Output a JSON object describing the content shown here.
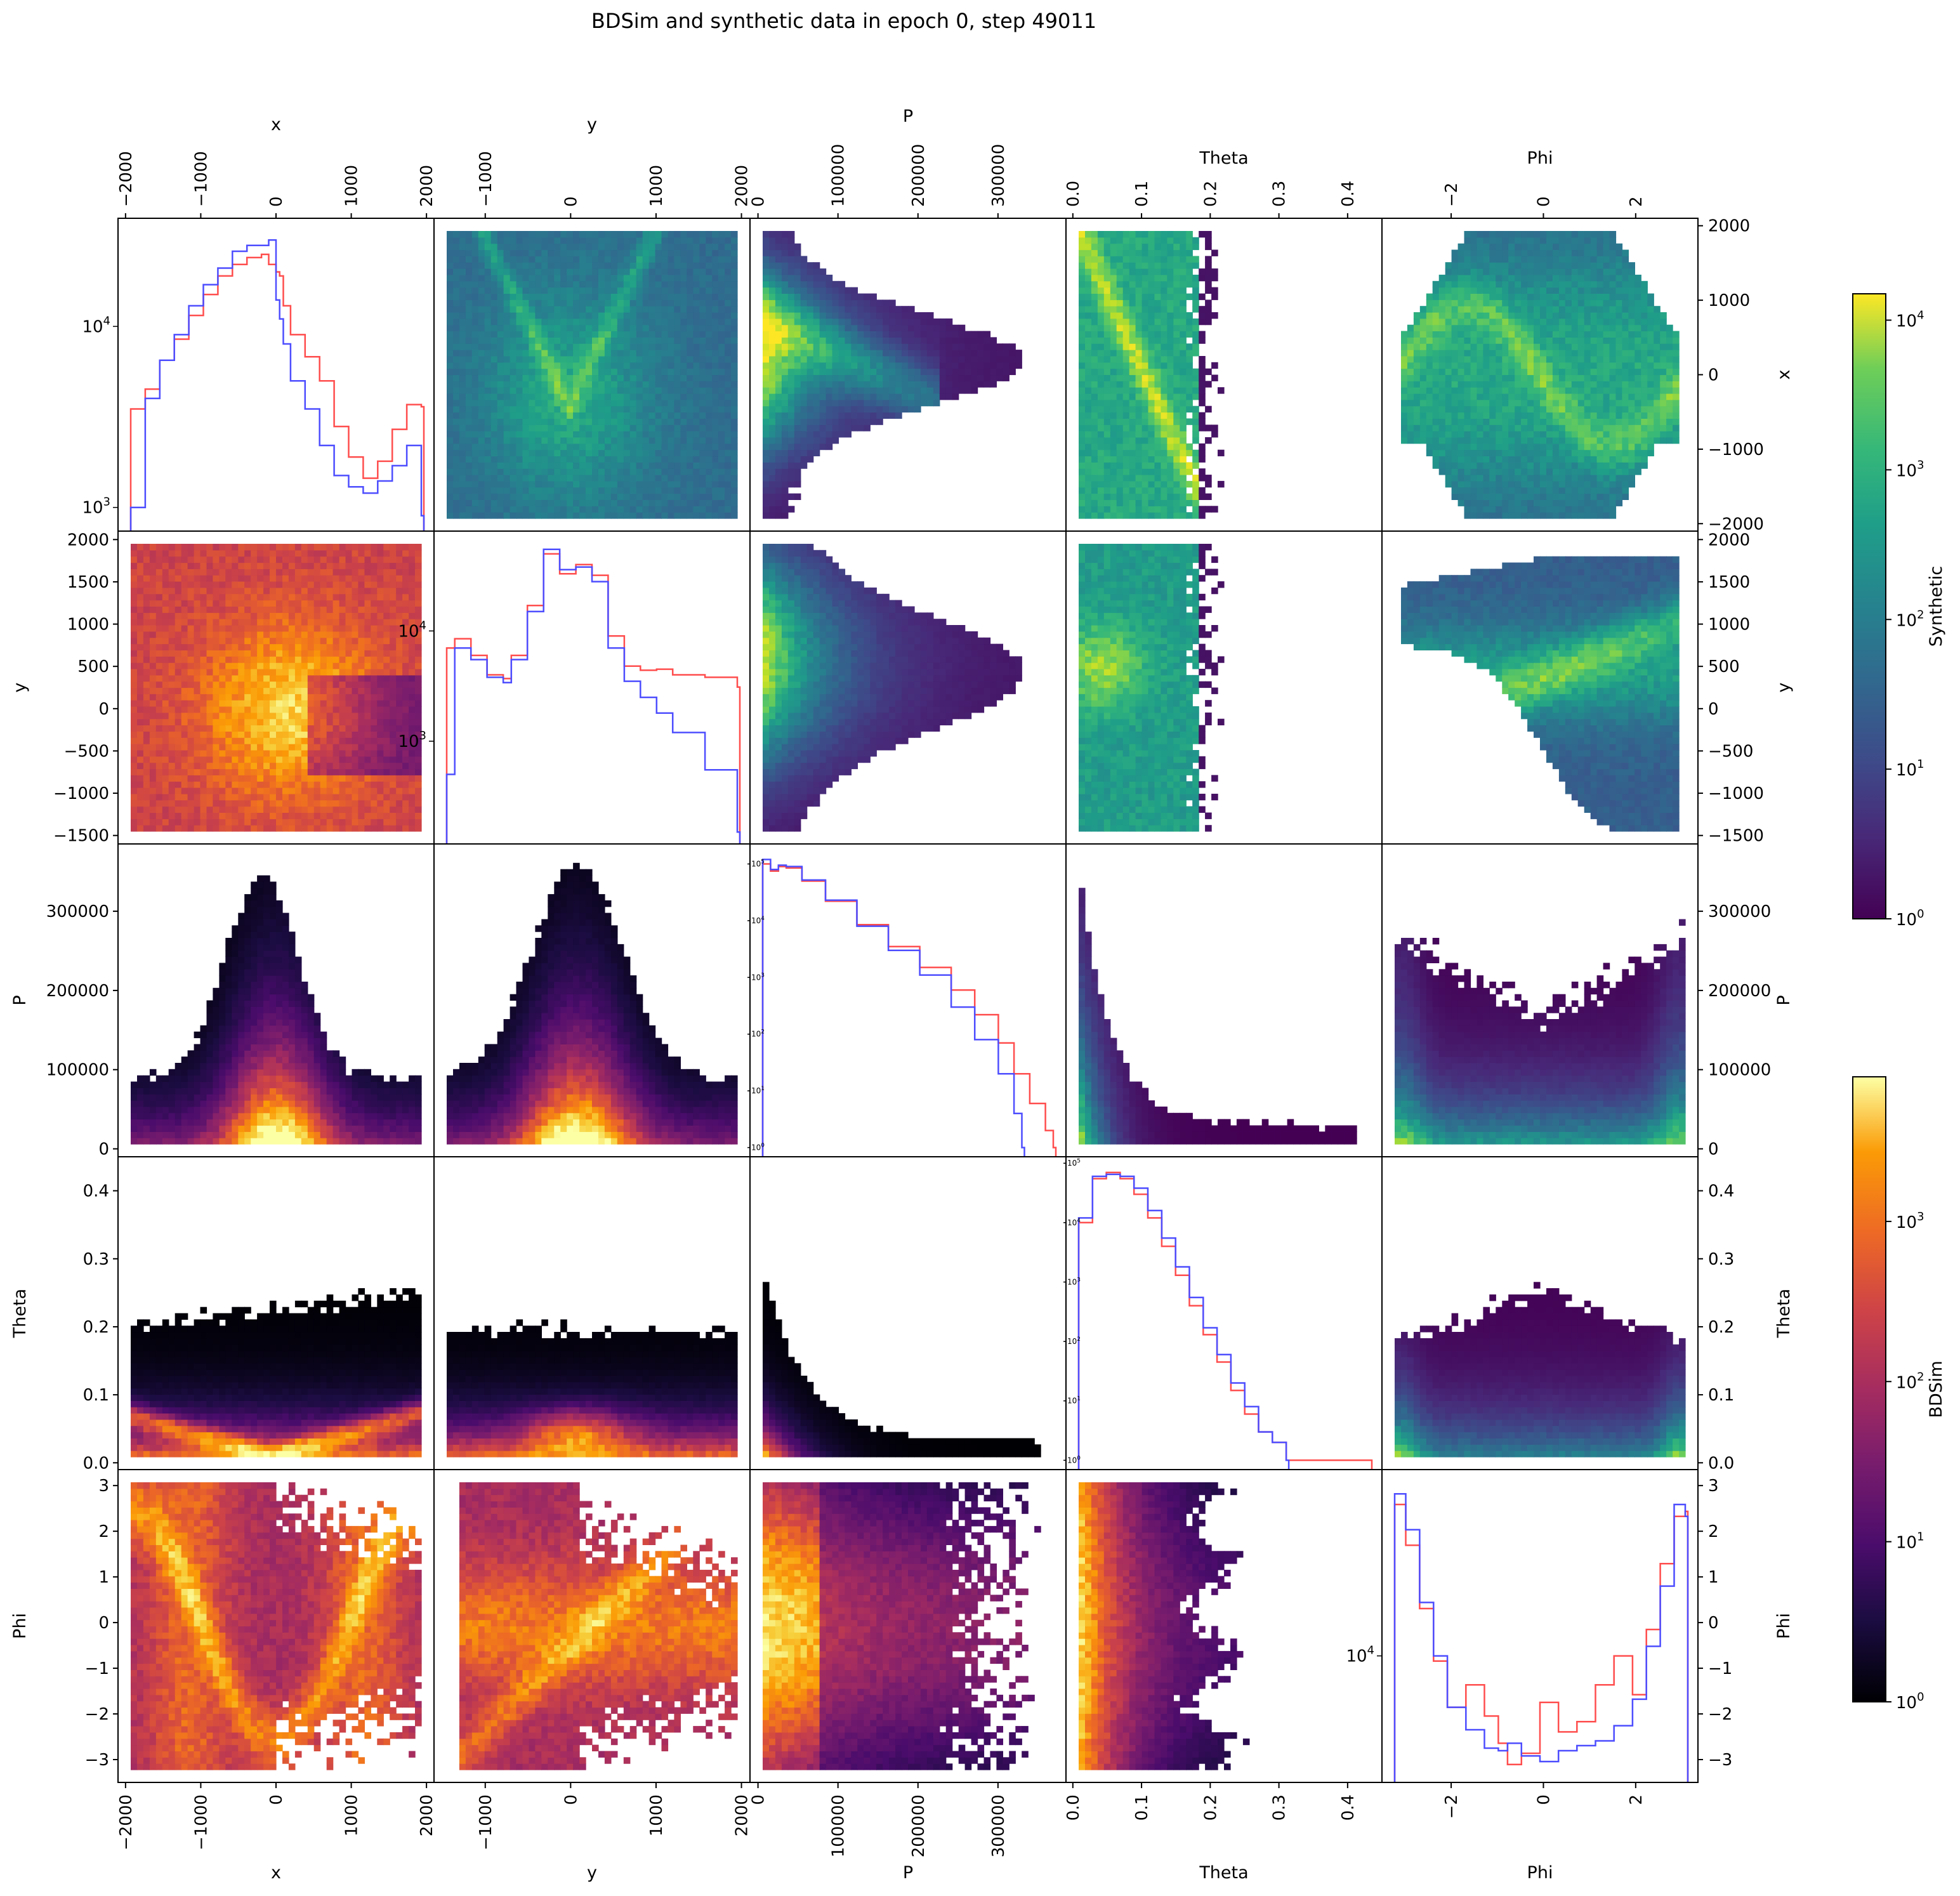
{
  "figure": {
    "title": "BDSim and synthetic data in epoch 0, step 49011"
  },
  "colors": {
    "bdsim_line": "#ff4d4d",
    "synthetic_line": "#4d4dff",
    "synthetic_cmap": "viridis",
    "bdsim_cmap": "inferno"
  },
  "colorbars": [
    {
      "label": "Synthetic",
      "cmap": "viridis",
      "scale": "log",
      "range": [
        1,
        15000
      ],
      "ticks": [
        {
          "exp": "0"
        },
        {
          "exp": "1"
        },
        {
          "exp": "2"
        },
        {
          "exp": "3"
        },
        {
          "exp": "4"
        }
      ]
    },
    {
      "label": "BDSim",
      "cmap": "inferno",
      "scale": "log",
      "range": [
        1,
        8000
      ],
      "ticks": [
        {
          "exp": "0"
        },
        {
          "exp": "1"
        },
        {
          "exp": "2"
        },
        {
          "exp": "3"
        }
      ]
    }
  ],
  "chart_data": {
    "type": "heatmap",
    "layout": "pair-plot grid; upper triangle = Synthetic 2D histograms (viridis), lower triangle = BDSim 2D histograms (inferno), diagonal = 1D histograms (BDSim red, Synthetic blue)",
    "variables": [
      "x",
      "y",
      "P",
      "Theta",
      "Phi"
    ],
    "ranges": {
      "x": [
        -2100,
        2100
      ],
      "y": [
        -1600,
        2100
      ],
      "P": [
        -10000,
        385000
      ],
      "Theta": [
        -0.01,
        0.45
      ],
      "Phi": [
        -3.5,
        3.35
      ]
    },
    "tick_labels": {
      "x": [
        "−2000",
        "−1000",
        "0",
        "1000",
        "2000"
      ],
      "y": [
        "−1000",
        "0",
        "1000",
        "2000"
      ],
      "P": [
        "0",
        "100000",
        "200000",
        "300000"
      ],
      "Theta": [
        "0.0",
        "0.1",
        "0.2",
        "0.3",
        "0.4"
      ],
      "Phi": [
        "−2",
        "0",
        "2"
      ]
    },
    "row_tick_labels": {
      "x": [
        "2000",
        "1000",
        "0",
        "−1000",
        "−2000"
      ],
      "y": [
        "2000",
        "1500",
        "1000",
        "500",
        "0",
        "−500",
        "−1000",
        "−1500"
      ],
      "P": [
        "300000",
        "200000",
        "100000",
        "0"
      ],
      "Theta": [
        "0.4",
        "0.3",
        "0.2",
        "0.1",
        "0.0"
      ],
      "Phi": [
        "3",
        "2",
        "1",
        "0",
        "−1",
        "−2",
        "−3"
      ]
    },
    "diagonal_histograms": [
      {
        "variable": "x",
        "yscale": "log",
        "y_tick_labels": [
          {
            "base": "10",
            "exp": "4"
          },
          {
            "base": "10",
            "exp": "3"
          }
        ],
        "series": [
          {
            "name": "BDSim",
            "x": [
              -2000,
              -1800,
              -1600,
              -1400,
              -1200,
              -1000,
              -800,
              -600,
              -400,
              -200,
              -100,
              0,
              50,
              100,
              200,
              400,
              600,
              800,
              1000,
              1200,
              1400,
              1600,
              1800,
              2000
            ],
            "values": [
              3500,
              4500,
              6500,
              8500,
              11500,
              15000,
              19000,
              22000,
              24000,
              25000,
              22000,
              20000,
              19000,
              13000,
              9000,
              6800,
              5000,
              2800,
              1900,
              1450,
              1800,
              2700,
              3700,
              3600
            ]
          },
          {
            "name": "Synthetic",
            "x": [
              -2000,
              -1800,
              -1600,
              -1400,
              -1200,
              -1000,
              -800,
              -600,
              -400,
              -200,
              -100,
              0,
              50,
              100,
              200,
              400,
              600,
              800,
              1000,
              1200,
              1400,
              1600,
              1800,
              2000
            ],
            "values": [
              1000,
              4000,
              6500,
              9000,
              13000,
              17000,
              21000,
              26000,
              28000,
              28000,
              30000,
              14000,
              11000,
              8000,
              5000,
              3500,
              2200,
              1500,
              1300,
              1200,
              1400,
              1700,
              2200,
              900
            ]
          }
        ]
      },
      {
        "variable": "y",
        "yscale": "log",
        "y_tick_labels": [
          {
            "base": "10",
            "exp": "4"
          },
          {
            "base": "10",
            "exp": "3"
          }
        ],
        "series": [
          {
            "name": "BDSim",
            "x": [
              -1600,
              -1500,
              -1300,
              -1100,
              -900,
              -800,
              -600,
              -400,
              -200,
              0,
              200,
              400,
              600,
              800,
              1000,
              1200,
              1600,
              2000
            ],
            "values": [
              7000,
              8500,
              6000,
              4000,
              3700,
              6000,
              17000,
              50000,
              33000,
              40000,
              32000,
              9000,
              4800,
              4400,
              4500,
              4000,
              3800,
              3100
            ]
          },
          {
            "name": "Synthetic",
            "x": [
              -1600,
              -1500,
              -1300,
              -1100,
              -900,
              -800,
              -600,
              -400,
              -200,
              0,
              200,
              400,
              600,
              800,
              1000,
              1200,
              1600,
              2000
            ],
            "values": [
              500,
              7000,
              5500,
              3800,
              3400,
              5500,
              15000,
              55000,
              36000,
              38000,
              28000,
              7000,
              3500,
              2500,
              1800,
              1200,
              550,
              150
            ]
          }
        ]
      },
      {
        "variable": "P",
        "yscale": "log",
        "y_tick_labels": [
          {
            "base": "10",
            "exp": "5"
          },
          {
            "base": "10",
            "exp": "4"
          },
          {
            "base": "10",
            "exp": "3"
          },
          {
            "base": "10",
            "exp": "2"
          },
          {
            "base": "10",
            "exp": "1"
          },
          {
            "base": "10",
            "exp": "0"
          }
        ],
        "series": [
          {
            "name": "BDSim",
            "x": [
              0,
              10000,
              20000,
              30000,
              50000,
              80000,
              120000,
              160000,
              200000,
              240000,
              270000,
              300000,
              320000,
              340000,
              360000,
              370000
            ],
            "values": [
              100000,
              75000,
              90000,
              85000,
              50000,
              22000,
              8500,
              3500,
              1500,
              600,
              220,
              70,
              20,
              6,
              2,
              1
            ]
          },
          {
            "name": "Synthetic",
            "x": [
              0,
              10000,
              20000,
              30000,
              50000,
              80000,
              120000,
              160000,
              200000,
              240000,
              270000,
              300000,
              320000,
              330000
            ],
            "values": [
              120000,
              80000,
              95000,
              90000,
              52000,
              23000,
              8000,
              3000,
              1100,
              300,
              80,
              20,
              4,
              1
            ]
          }
        ]
      },
      {
        "variable": "Theta",
        "yscale": "log",
        "y_tick_labels": [
          {
            "base": "10",
            "exp": "5"
          },
          {
            "base": "10",
            "exp": "4"
          },
          {
            "base": "10",
            "exp": "3"
          },
          {
            "base": "10",
            "exp": "2"
          },
          {
            "base": "10",
            "exp": "1"
          },
          {
            "base": "10",
            "exp": "0"
          }
        ],
        "series": [
          {
            "name": "BDSim",
            "x": [
              0,
              0.02,
              0.04,
              0.06,
              0.08,
              0.1,
              0.12,
              0.14,
              0.16,
              0.18,
              0.2,
              0.22,
              0.24,
              0.26,
              0.28,
              0.3,
              0.35,
              0.42
            ],
            "values": [
              10000,
              55000,
              70000,
              55000,
              30000,
              12000,
              4000,
              1300,
              400,
              130,
              45,
              15,
              6,
              3,
              2,
              1,
              1,
              1
            ]
          },
          {
            "name": "Synthetic",
            "x": [
              0,
              0.02,
              0.04,
              0.06,
              0.08,
              0.1,
              0.12,
              0.14,
              0.16,
              0.18,
              0.2,
              0.22,
              0.24,
              0.26,
              0.28,
              0.3
            ],
            "values": [
              12000,
              60000,
              65000,
              60000,
              38000,
              16000,
              5500,
              1800,
              550,
              170,
              60,
              20,
              8,
              3,
              2,
              1
            ]
          }
        ]
      },
      {
        "variable": "Phi",
        "yscale": "log",
        "y_tick_labels": [
          {
            "base": "10",
            "exp": "4"
          }
        ],
        "series": [
          {
            "name": "BDSim",
            "x": [
              -3.14,
              -2.9,
              -2.6,
              -2.3,
              -2.0,
              -1.6,
              -1.2,
              -0.9,
              -0.7,
              -0.4,
              0.0,
              0.4,
              0.8,
              1.2,
              1.6,
              2.0,
              2.3,
              2.6,
              2.9,
              3.14
            ],
            "values": [
              45000,
              30000,
              16000,
              9500,
              6000,
              7500,
              5500,
              4200,
              3400,
              3800,
              6300,
              4700,
              5200,
              7500,
              10000,
              6800,
              13000,
              25000,
              40000,
              42000
            ]
          },
          {
            "name": "Synthetic",
            "x": [
              -3.14,
              -2.9,
              -2.6,
              -2.3,
              -2.0,
              -1.6,
              -1.2,
              -0.9,
              -0.7,
              -0.4,
              0.0,
              0.4,
              0.8,
              1.2,
              1.6,
              2.0,
              2.3,
              2.6,
              2.9,
              3.14
            ],
            "values": [
              50000,
              35000,
              17000,
              10000,
              6000,
              4800,
              4000,
              3900,
              4200,
              3700,
              3500,
              3900,
              4100,
              4300,
              5000,
              6500,
              11000,
              20000,
              45000,
              40000
            ]
          }
        ]
      }
    ]
  }
}
